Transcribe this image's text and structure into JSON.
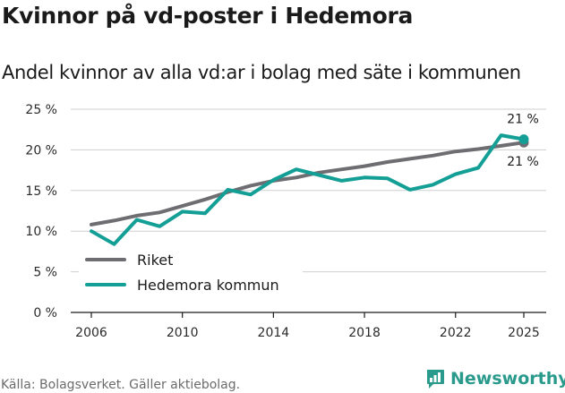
{
  "header": {
    "title": "Kvinnor på vd-poster i Hedemora",
    "subtitle": "Andel kvinnor av alla vd:ar i bolag med säte i kommunen"
  },
  "footer": {
    "source": "Källa: Bolagsverket. Gäller aktiebolag.",
    "brand": "Newsworthy"
  },
  "colors": {
    "riket": "#6e6e72",
    "hedemora": "#139f95",
    "grid": "#cfcfcf",
    "axis": "#1a1a1a"
  },
  "chart_data": {
    "type": "line",
    "title": "Kvinnor på vd-poster i Hedemora",
    "subtitle": "Andel kvinnor av alla vd:ar i bolag med säte i kommunen",
    "xlabel": "",
    "ylabel": "",
    "x": [
      2006,
      2007,
      2008,
      2009,
      2010,
      2011,
      2012,
      2013,
      2014,
      2015,
      2016,
      2017,
      2018,
      2019,
      2020,
      2021,
      2022,
      2023,
      2024,
      2025
    ],
    "xticks": [
      2006,
      2010,
      2014,
      2018,
      2022,
      2025
    ],
    "xtick_labels": [
      "2006",
      "2010",
      "2014",
      "2018",
      "2022",
      "2025"
    ],
    "yticks": [
      0,
      5,
      10,
      15,
      20,
      25
    ],
    "ytick_labels": [
      "0 %",
      "5 %",
      "10 %",
      "15 %",
      "20 %",
      "25 %"
    ],
    "xlim": [
      2006,
      2025
    ],
    "ylim": [
      0,
      25
    ],
    "grid": true,
    "legend_position": "bottom-left",
    "series": [
      {
        "name": "Riket",
        "color": "#6e6e72",
        "values": [
          10.8,
          11.3,
          11.9,
          12.3,
          13.1,
          13.9,
          14.8,
          15.6,
          16.2,
          16.6,
          17.2,
          17.6,
          18.0,
          18.5,
          18.9,
          19.3,
          19.8,
          20.1,
          20.5,
          20.9
        ],
        "end_label": "21 %"
      },
      {
        "name": "Hedemora kommun",
        "color": "#139f95",
        "values": [
          10.0,
          8.4,
          11.4,
          10.6,
          12.4,
          12.2,
          15.1,
          14.5,
          16.3,
          17.6,
          16.9,
          16.2,
          16.6,
          16.5,
          15.1,
          15.7,
          17.0,
          17.8,
          21.8,
          21.3
        ],
        "end_label": "21 %"
      }
    ]
  }
}
